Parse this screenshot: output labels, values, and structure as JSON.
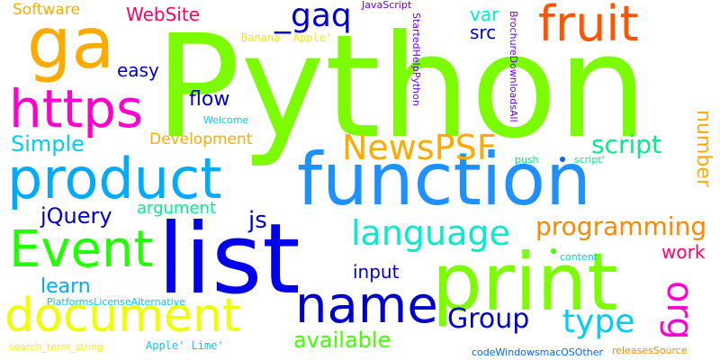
{
  "words": [
    {
      "text": "Python",
      "color": "#7cfc00"
    },
    {
      "text": "function",
      "color": "#1e90ff"
    },
    {
      "text": "list",
      "color": "#0000ee"
    },
    {
      "text": "print",
      "color": "#7cfc00"
    },
    {
      "text": "product",
      "color": "#00aaff"
    },
    {
      "text": "ga",
      "color": "#ffaa00"
    },
    {
      "text": "https",
      "color": "#ff00cc"
    },
    {
      "text": "fruit",
      "color": "#ff5500"
    },
    {
      "text": "_gaq",
      "color": "#0000cc"
    },
    {
      "text": "document",
      "color": "#eeff00"
    },
    {
      "text": "Event",
      "color": "#22ff00"
    },
    {
      "text": "name",
      "color": "#0000cc"
    },
    {
      "text": "language",
      "color": "#00eecc"
    },
    {
      "text": "NewsPSF",
      "color": "#ffaa00"
    },
    {
      "text": "Group",
      "color": "#0000cc"
    },
    {
      "text": "type",
      "color": "#00ccff"
    },
    {
      "text": "programming",
      "color": "#ff8800"
    },
    {
      "text": "org",
      "color": "#ff00cc"
    },
    {
      "text": "script",
      "color": "#00ee88"
    },
    {
      "text": "Simple",
      "color": "#00ccff"
    },
    {
      "text": "available",
      "color": "#44ff00"
    },
    {
      "text": "jQuery",
      "color": "#0000cc"
    },
    {
      "text": "WebSite",
      "color": "#ff0066"
    },
    {
      "text": "learn",
      "color": "#00aaff"
    },
    {
      "text": "js",
      "color": "#0000cc"
    },
    {
      "text": "number",
      "color": "#ffaa00"
    },
    {
      "text": "Software",
      "color": "#ffaa00"
    },
    {
      "text": "easy",
      "color": "#0000cc"
    },
    {
      "text": "flow",
      "color": "#0000cc"
    },
    {
      "text": "var",
      "color": "#00eecc"
    },
    {
      "text": "src",
      "color": "#0000cc"
    },
    {
      "text": "Development",
      "color": "#ffaa00"
    },
    {
      "text": "argument",
      "color": "#00ee88"
    },
    {
      "text": "input",
      "color": "#0000cc"
    },
    {
      "text": "work",
      "color": "#ff0066"
    },
    {
      "text": "Banana' Apple'",
      "color": "#eeee00"
    },
    {
      "text": "JavaScript",
      "color": "#6600ff"
    },
    {
      "text": "StartedHelpPython",
      "color": "#6600ff"
    },
    {
      "text": "BrochureDownloadsAll",
      "color": "#6600ff"
    },
    {
      "text": "Welcome",
      "color": "#00ccff"
    },
    {
      "text": "push",
      "color": "#00ee88"
    },
    {
      "text": "script'",
      "color": "#00ee88"
    },
    {
      "text": "content",
      "color": "#00ccff"
    },
    {
      "text": "PlatformsLicenseAlternative",
      "color": "#00ccff"
    },
    {
      "text": "Apple' Lime'",
      "color": "#00ccff"
    },
    {
      "text": "search_term_string",
      "color": "#ffee00"
    },
    {
      "text": "codeWindowsmacOSOther",
      "color": "#0066ff"
    },
    {
      "text": "releasesSource",
      "color": "#ff8800"
    }
  ],
  "dots": [
    {
      "name": "blue-dot",
      "color": "#0066ff"
    },
    {
      "name": "green-dot",
      "color": "#44ff00"
    }
  ]
}
